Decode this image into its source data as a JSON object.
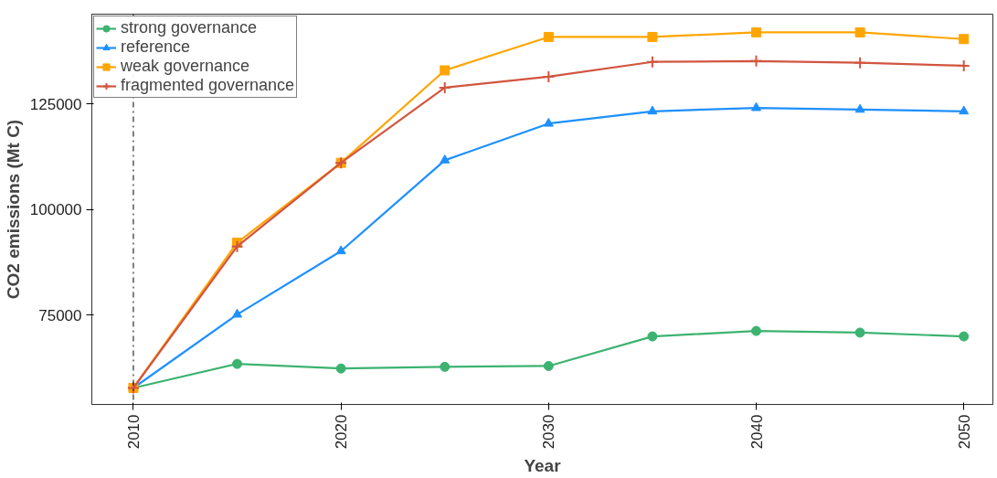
{
  "chart_data": {
    "type": "line",
    "xlabel": "Year",
    "ylabel": "CO2 emissions (Mt C)",
    "x": [
      2010,
      2015,
      2020,
      2025,
      2030,
      2035,
      2040,
      2045,
      2050
    ],
    "series": [
      {
        "name": "strong governance",
        "color": "#3cb371",
        "marker": "circle",
        "values": [
          57800,
          63500,
          62400,
          62800,
          63000,
          70000,
          71300,
          70900,
          70000
        ]
      },
      {
        "name": "reference",
        "color": "#1e90ff",
        "marker": "triangle",
        "values": [
          57800,
          75200,
          90200,
          111700,
          120400,
          123300,
          124100,
          123700,
          123300
        ]
      },
      {
        "name": "weak governance",
        "color": "#ffa500",
        "marker": "square",
        "values": [
          57800,
          92200,
          111100,
          133000,
          140900,
          140900,
          142000,
          142000,
          140400
        ]
      },
      {
        "name": "fragmented governance",
        "color": "#d2553f",
        "marker": "cross",
        "values": [
          57800,
          91300,
          111100,
          128900,
          131500,
          135000,
          135200,
          134800,
          134100
        ]
      }
    ],
    "xlim": [
      2008.0,
      2051.4
    ],
    "ylim": [
      53900,
      146300
    ],
    "xticks": [
      2010,
      2020,
      2030,
      2040,
      2050
    ],
    "yticks": [
      75000,
      100000,
      125000
    ],
    "ref_lines": [
      {
        "axis": "x",
        "value": 2010,
        "label": null,
        "color": "#000000",
        "line_style": "dashdot"
      }
    ],
    "grid": false,
    "legend": "top left",
    "line_style": "solid"
  }
}
